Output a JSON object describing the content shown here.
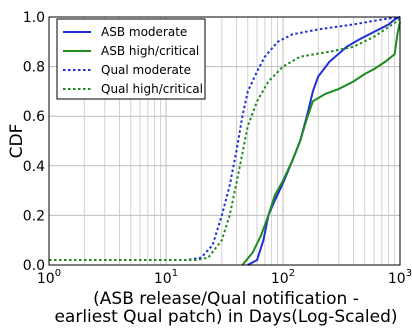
{
  "chart_data": {
    "type": "line",
    "title": "",
    "xlabel_lines": [
      "(ASB release/Qual notification -",
      "earliest Qual patch) in Days(Log-Scaled)"
    ],
    "ylabel": "CDF",
    "x_scale": "log",
    "xlim": [
      1,
      1000
    ],
    "ylim": [
      0,
      1
    ],
    "x_ticks": [
      {
        "value": 1,
        "base": "10",
        "exp": "0"
      },
      {
        "value": 10,
        "base": "10",
        "exp": "1"
      },
      {
        "value": 100,
        "base": "10",
        "exp": "2"
      },
      {
        "value": 1000,
        "base": "10",
        "exp": "3"
      }
    ],
    "y_ticks": [
      {
        "value": 0,
        "label": "0.0"
      },
      {
        "value": 0.2,
        "label": "0.2"
      },
      {
        "value": 0.4,
        "label": "0.4"
      },
      {
        "value": 0.6,
        "label": "0.6"
      },
      {
        "value": 0.8,
        "label": "0.8"
      },
      {
        "value": 1.0,
        "label": "1.0"
      }
    ],
    "grid": true,
    "legend_position": "top-left",
    "series": [
      {
        "name": "ASB moderate",
        "color": "#1f2ed8",
        "dash": "solid",
        "points": [
          [
            50,
            0
          ],
          [
            60,
            0.02
          ],
          [
            68,
            0.1
          ],
          [
            75,
            0.2
          ],
          [
            85,
            0.26
          ],
          [
            100,
            0.33
          ],
          [
            120,
            0.42
          ],
          [
            140,
            0.5
          ],
          [
            160,
            0.6
          ],
          [
            180,
            0.7
          ],
          [
            200,
            0.76
          ],
          [
            250,
            0.82
          ],
          [
            350,
            0.88
          ],
          [
            450,
            0.91
          ],
          [
            600,
            0.94
          ],
          [
            800,
            0.97
          ],
          [
            900,
            0.99
          ],
          [
            1000,
            1.0
          ]
        ]
      },
      {
        "name": "ASB high/critical",
        "color": "#1f8a1f",
        "dash": "solid",
        "points": [
          [
            45,
            0
          ],
          [
            55,
            0.05
          ],
          [
            65,
            0.12
          ],
          [
            75,
            0.2
          ],
          [
            85,
            0.28
          ],
          [
            100,
            0.34
          ],
          [
            120,
            0.42
          ],
          [
            140,
            0.5
          ],
          [
            160,
            0.59
          ],
          [
            180,
            0.66
          ],
          [
            230,
            0.69
          ],
          [
            300,
            0.71
          ],
          [
            400,
            0.74
          ],
          [
            500,
            0.77
          ],
          [
            600,
            0.79
          ],
          [
            750,
            0.82
          ],
          [
            900,
            0.85
          ],
          [
            950,
            0.93
          ],
          [
            1000,
            0.98
          ]
        ]
      },
      {
        "name": "Qual moderate",
        "color": "#1f2ed8",
        "dash": "dotted",
        "points": [
          [
            1,
            0.02
          ],
          [
            15,
            0.02
          ],
          [
            20,
            0.03
          ],
          [
            25,
            0.08
          ],
          [
            30,
            0.2
          ],
          [
            35,
            0.32
          ],
          [
            40,
            0.46
          ],
          [
            45,
            0.6
          ],
          [
            50,
            0.7
          ],
          [
            60,
            0.78
          ],
          [
            70,
            0.84
          ],
          [
            90,
            0.9
          ],
          [
            120,
            0.93
          ],
          [
            200,
            0.95
          ],
          [
            400,
            0.97
          ],
          [
            700,
            0.99
          ],
          [
            1000,
            1.0
          ]
        ]
      },
      {
        "name": "Qual high/critical",
        "color": "#1f8a1f",
        "dash": "dotted",
        "points": [
          [
            1,
            0.02
          ],
          [
            18,
            0.02
          ],
          [
            23,
            0.03
          ],
          [
            30,
            0.1
          ],
          [
            35,
            0.2
          ],
          [
            40,
            0.33
          ],
          [
            45,
            0.45
          ],
          [
            50,
            0.56
          ],
          [
            60,
            0.66
          ],
          [
            75,
            0.74
          ],
          [
            100,
            0.8
          ],
          [
            140,
            0.84
          ],
          [
            250,
            0.86
          ],
          [
            400,
            0.88
          ],
          [
            600,
            0.92
          ],
          [
            800,
            0.96
          ],
          [
            1000,
            0.99
          ]
        ]
      }
    ]
  }
}
